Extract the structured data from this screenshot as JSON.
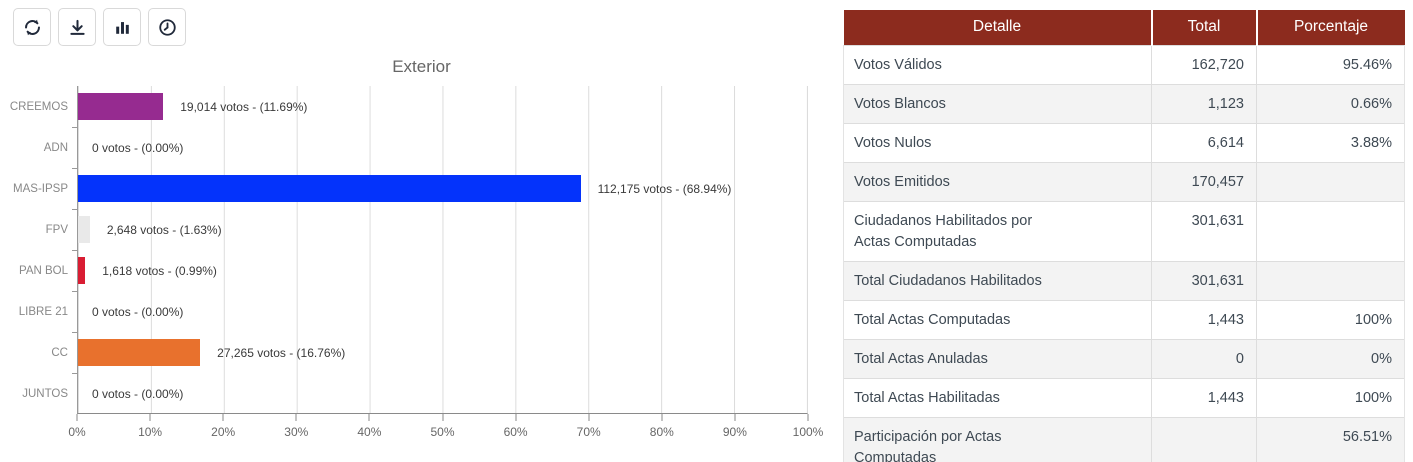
{
  "toolbar": {
    "buttons": [
      {
        "name": "refresh",
        "icon": "refresh-icon"
      },
      {
        "name": "download",
        "icon": "download-icon"
      },
      {
        "name": "bar-chart",
        "icon": "bar-chart-icon"
      },
      {
        "name": "history",
        "icon": "clock-icon"
      }
    ]
  },
  "chart_data": {
    "type": "bar",
    "orientation": "horizontal",
    "title": "Exterior",
    "categories": [
      "CREEMOS",
      "ADN",
      "MAS-IPSP",
      "FPV",
      "PAN BOL",
      "LIBRE 21",
      "CC",
      "JUNTOS"
    ],
    "votes": [
      19014,
      0,
      112175,
      2648,
      1618,
      0,
      27265,
      0
    ],
    "values_pct": [
      11.69,
      0.0,
      68.94,
      1.63,
      0.99,
      0.0,
      16.76,
      0.0
    ],
    "labels": [
      "19,014 votos - (11.69%)",
      "0 votos - (0.00%)",
      "112,175 votos - (68.94%)",
      "2,648 votos - (1.63%)",
      "1,618 votos - (0.99%)",
      "0 votos - (0.00%)",
      "27,265 votos - (16.76%)",
      "0 votos - (0.00%)"
    ],
    "bar_colors": [
      "#962B90",
      "#962B90",
      "#0433FB",
      "#E9E9E9",
      "#D91D33",
      "#E9E9E9",
      "#E8712D",
      "#E9E9E9"
    ],
    "x_ticks": [
      "0%",
      "10%",
      "20%",
      "30%",
      "40%",
      "50%",
      "60%",
      "70%",
      "80%",
      "90%",
      "100%"
    ],
    "xlim": [
      0,
      100
    ],
    "grid": true,
    "legend": "none"
  },
  "table": {
    "headers": [
      "Detalle",
      "Total",
      "Porcentaje"
    ],
    "header_bg": "#8C2B1E",
    "rows": [
      {
        "detalle": "Votos Válidos",
        "total": "162,720",
        "porcentaje": "95.46%"
      },
      {
        "detalle": "Votos Blancos",
        "total": "1,123",
        "porcentaje": "0.66%"
      },
      {
        "detalle": "Votos Nulos",
        "total": "6,614",
        "porcentaje": "3.88%"
      },
      {
        "detalle": "Votos Emitidos",
        "total": "170,457",
        "porcentaje": ""
      },
      {
        "detalle": "Ciudadanos Habilitados por\nActas Computadas",
        "total": "301,631",
        "porcentaje": ""
      },
      {
        "detalle": "Total Ciudadanos Habilitados",
        "total": "301,631",
        "porcentaje": ""
      },
      {
        "detalle": "Total Actas Computadas",
        "total": "1,443",
        "porcentaje": "100%"
      },
      {
        "detalle": "Total Actas Anuladas",
        "total": "0",
        "porcentaje": "0%"
      },
      {
        "detalle": "Total Actas Habilitadas",
        "total": "1,443",
        "porcentaje": "100%"
      },
      {
        "detalle": "Participación por Actas\nComputadas",
        "total": "",
        "porcentaje": "56.51%"
      }
    ]
  }
}
